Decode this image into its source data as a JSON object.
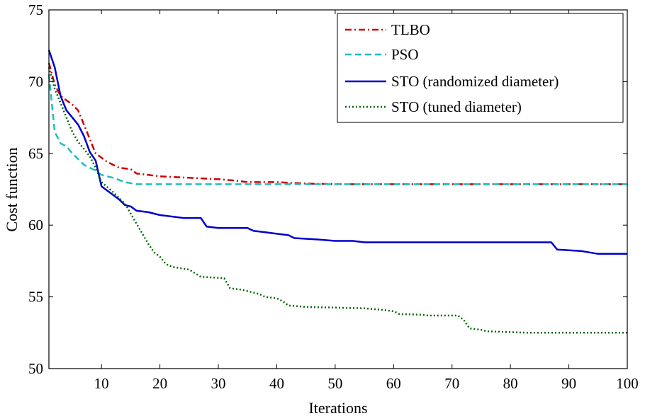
{
  "chart_data": {
    "type": "line",
    "title": "",
    "xlabel": "Iterations",
    "ylabel": "Cost function",
    "xlim": [
      1,
      100
    ],
    "ylim": [
      50,
      75
    ],
    "xticks": [
      10,
      20,
      30,
      40,
      50,
      60,
      70,
      80,
      90,
      100
    ],
    "yticks": [
      50,
      55,
      60,
      65,
      70,
      75
    ],
    "grid": false,
    "legend_position": "top-right",
    "series": [
      {
        "name": "TLBO",
        "color": "#cc0000",
        "dash": "dash-dot",
        "points": [
          [
            1,
            71.3
          ],
          [
            2,
            69.8
          ],
          [
            3,
            69.0
          ],
          [
            4,
            68.7
          ],
          [
            5,
            68.4
          ],
          [
            6,
            68.0
          ],
          [
            7,
            67.0
          ],
          [
            8,
            66.0
          ],
          [
            9,
            65.0
          ],
          [
            10,
            64.7
          ],
          [
            11,
            64.4
          ],
          [
            12,
            64.2
          ],
          [
            13,
            64.0
          ],
          [
            15,
            63.9
          ],
          [
            16,
            63.6
          ],
          [
            18,
            63.5
          ],
          [
            20,
            63.4
          ],
          [
            25,
            63.3
          ],
          [
            30,
            63.2
          ],
          [
            33,
            63.1
          ],
          [
            35,
            63.0
          ],
          [
            40,
            63.0
          ],
          [
            42,
            62.95
          ],
          [
            45,
            62.9
          ],
          [
            50,
            62.85
          ],
          [
            100,
            62.85
          ]
        ]
      },
      {
        "name": "PSO",
        "color": "#1fbdbd",
        "dash": "dashed",
        "points": [
          [
            1,
            70.5
          ],
          [
            2,
            66.5
          ],
          [
            3,
            65.7
          ],
          [
            4,
            65.5
          ],
          [
            5,
            65.0
          ],
          [
            6,
            64.6
          ],
          [
            7,
            64.2
          ],
          [
            8,
            64.0
          ],
          [
            9,
            63.8
          ],
          [
            10,
            63.5
          ],
          [
            12,
            63.3
          ],
          [
            14,
            63.0
          ],
          [
            16,
            62.85
          ],
          [
            20,
            62.85
          ],
          [
            100,
            62.85
          ]
        ]
      },
      {
        "name": "STO (randomized diameter)",
        "color": "#0000cc",
        "dash": "solid",
        "points": [
          [
            1,
            72.2
          ],
          [
            2,
            71.0
          ],
          [
            3,
            69.0
          ],
          [
            4,
            68.0
          ],
          [
            5,
            67.5
          ],
          [
            6,
            67.0
          ],
          [
            7,
            66.2
          ],
          [
            8,
            65.1
          ],
          [
            9,
            64.5
          ],
          [
            10,
            62.7
          ],
          [
            11,
            62.4
          ],
          [
            12,
            62.1
          ],
          [
            13,
            61.8
          ],
          [
            14,
            61.4
          ],
          [
            15,
            61.3
          ],
          [
            16,
            61.0
          ],
          [
            18,
            60.9
          ],
          [
            20,
            60.7
          ],
          [
            22,
            60.6
          ],
          [
            24,
            60.5
          ],
          [
            27,
            60.5
          ],
          [
            28,
            59.9
          ],
          [
            30,
            59.8
          ],
          [
            35,
            59.8
          ],
          [
            36,
            59.6
          ],
          [
            38,
            59.5
          ],
          [
            40,
            59.4
          ],
          [
            42,
            59.3
          ],
          [
            43,
            59.1
          ],
          [
            47,
            59.0
          ],
          [
            50,
            58.9
          ],
          [
            53,
            58.9
          ],
          [
            55,
            58.8
          ],
          [
            87,
            58.8
          ],
          [
            88,
            58.3
          ],
          [
            92,
            58.2
          ],
          [
            95,
            58.0
          ],
          [
            100,
            58.0
          ]
        ]
      },
      {
        "name": "STO (tuned diameter)",
        "color": "#006600",
        "dash": "dotted",
        "points": [
          [
            1,
            71.0
          ],
          [
            2,
            69.5
          ],
          [
            3,
            68.5
          ],
          [
            4,
            67.5
          ],
          [
            5,
            66.5
          ],
          [
            6,
            65.8
          ],
          [
            7,
            65.3
          ],
          [
            8,
            64.8
          ],
          [
            9,
            64.0
          ],
          [
            10,
            63.0
          ],
          [
            12,
            62.3
          ],
          [
            14,
            61.5
          ],
          [
            15,
            60.8
          ],
          [
            16,
            60.1
          ],
          [
            17,
            59.4
          ],
          [
            18,
            58.7
          ],
          [
            19,
            58.1
          ],
          [
            20,
            57.8
          ],
          [
            21,
            57.3
          ],
          [
            22,
            57.1
          ],
          [
            25,
            56.9
          ],
          [
            27,
            56.4
          ],
          [
            31,
            56.3
          ],
          [
            32,
            55.6
          ],
          [
            34,
            55.5
          ],
          [
            37,
            55.2
          ],
          [
            38,
            55.0
          ],
          [
            40,
            54.9
          ],
          [
            41,
            54.7
          ],
          [
            42,
            54.4
          ],
          [
            45,
            54.3
          ],
          [
            55,
            54.2
          ],
          [
            58,
            54.1
          ],
          [
            60,
            54.0
          ],
          [
            61,
            53.8
          ],
          [
            65,
            53.75
          ],
          [
            66,
            53.7
          ],
          [
            71,
            53.7
          ],
          [
            72,
            53.4
          ],
          [
            73,
            52.8
          ],
          [
            75,
            52.7
          ],
          [
            76,
            52.6
          ],
          [
            83,
            52.5
          ],
          [
            100,
            52.5
          ]
        ]
      }
    ]
  }
}
